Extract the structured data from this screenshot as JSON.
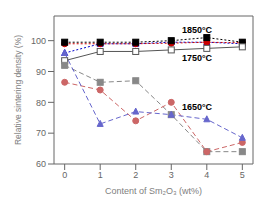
{
  "chart_data": {
    "type": "line",
    "xlabel": "Content of Sm₂O₃ (wt%)",
    "ylabel": "Relative sintering density (%)",
    "x": [
      0,
      1,
      2,
      3,
      4,
      5
    ],
    "series": [
      {
        "color": "#0000cc",
        "marker": "triangle",
        "line_style": "dotted",
        "values": [
          96,
          99,
          99,
          99.5,
          99.5,
          99
        ]
      },
      {
        "color": "#cc0000",
        "marker": "circle",
        "line_style": "dotted",
        "values": [
          99,
          99,
          99,
          99.2,
          99.5,
          99.3
        ]
      },
      {
        "color": "#000000",
        "marker": "square",
        "line_style": "dotted",
        "values": [
          99.5,
          99.5,
          99.5,
          100,
          101,
          99.5
        ]
      },
      {
        "color": "#555555",
        "marker": "open_square",
        "line_style": "solid",
        "values": [
          93.5,
          96.5,
          96.5,
          97,
          97.5,
          98
        ]
      },
      {
        "color": "#888888",
        "marker": "square",
        "line_style": "dashed",
        "values": [
          92,
          86.5,
          87,
          76,
          64,
          64
        ]
      },
      {
        "color": "#cc6666",
        "marker": "circle",
        "line_style": "dashed",
        "values": [
          86.5,
          84,
          74,
          80,
          64,
          67
        ]
      },
      {
        "color": "#6666cc",
        "marker": "triangle",
        "line_style": "dashed",
        "values": [
          96,
          73,
          77,
          76,
          74.5,
          68.5
        ]
      }
    ],
    "xlim": [
      -0.3,
      5.3
    ],
    "ylim": [
      60,
      108
    ],
    "xticks": [
      0,
      1,
      2,
      3,
      4,
      5
    ],
    "yticks": [
      60,
      70,
      80,
      90,
      100
    ],
    "annotations": [
      {
        "text": "1850°C",
        "x": 3.3,
        "y": 103.5
      },
      {
        "text": "1750°C",
        "x": 3.3,
        "y": 94.5
      },
      {
        "text": "1650°C",
        "x": 3.3,
        "y": 78.5
      }
    ],
    "grid": false
  }
}
